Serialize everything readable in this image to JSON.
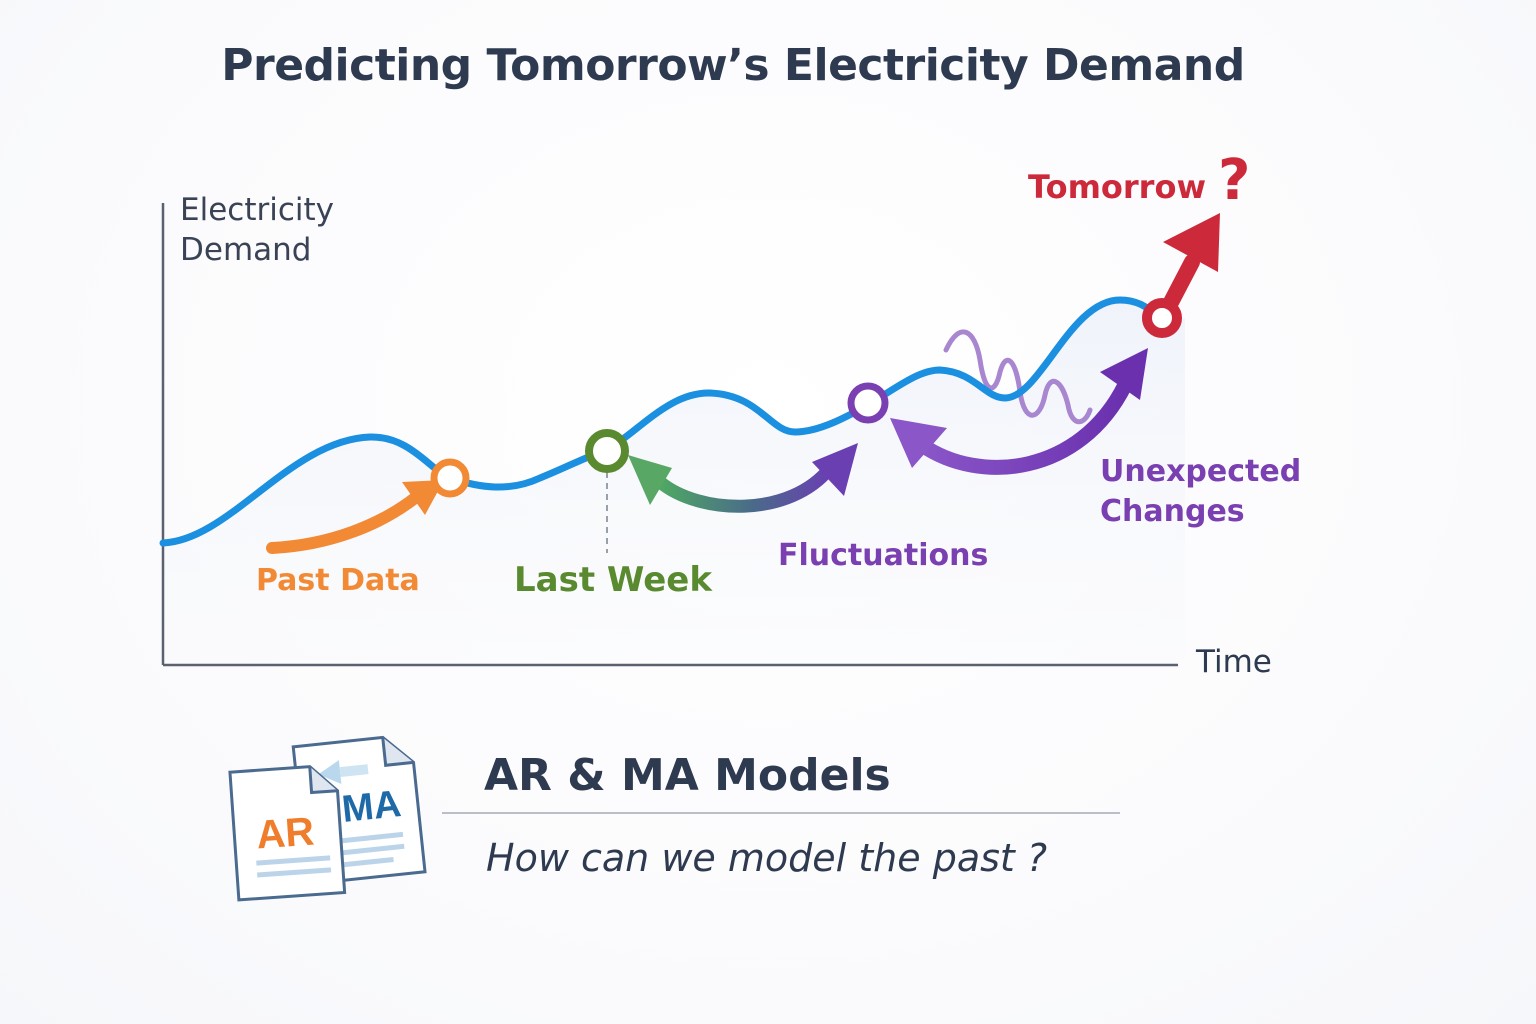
{
  "title": "Predicting Tomorrow’s Electricity Demand",
  "axes": {
    "y_label_line1": "Electricity",
    "y_label_line2": "Demand",
    "x_label": "Time"
  },
  "annotations": {
    "past_data": "Past Data",
    "last_week": "Last Week",
    "fluctuations": "Fluctuations",
    "unexpected_line1": "Unexpected",
    "unexpected_line2": "Changes",
    "tomorrow": "Tomorrow",
    "question_mark": "?"
  },
  "colors": {
    "curve": "#1b8fe0",
    "past_data": "#f28a35",
    "last_week": "#5a8a2f",
    "fluctuations": "#7a3fb0",
    "tomorrow": "#cc2a3a",
    "text_dark": "#2e3a4f"
  },
  "models": {
    "heading": "AR & MA Models",
    "question": "How can we model the past ?",
    "icon_doc_1": "AR",
    "icon_doc_2": "MA"
  }
}
